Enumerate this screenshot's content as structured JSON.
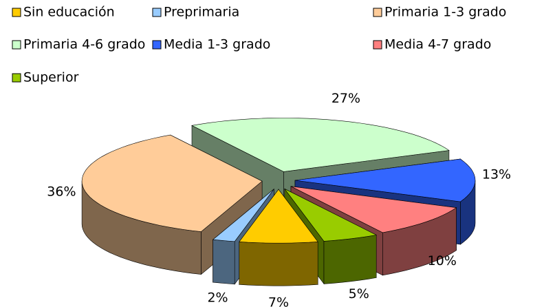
{
  "chart_data": {
    "type": "pie3d",
    "categories": [
      "Sin educación",
      "Preprimaria",
      "Primaria 1-3 grado",
      "Primaria 4-6 grado",
      "Media 1-3 grado",
      "Media 4-7 grado",
      "Superior"
    ],
    "values": [
      7,
      2,
      36,
      27,
      13,
      10,
      5
    ],
    "value_labels": [
      "7%",
      "2%",
      "36%",
      "27%",
      "13%",
      "10%",
      "5%"
    ],
    "colors": [
      "#ffcc00",
      "#99ccff",
      "#ffcc99",
      "#ccffcc",
      "#3366ff",
      "#ff8080",
      "#99cc00"
    ],
    "legend": "top"
  }
}
